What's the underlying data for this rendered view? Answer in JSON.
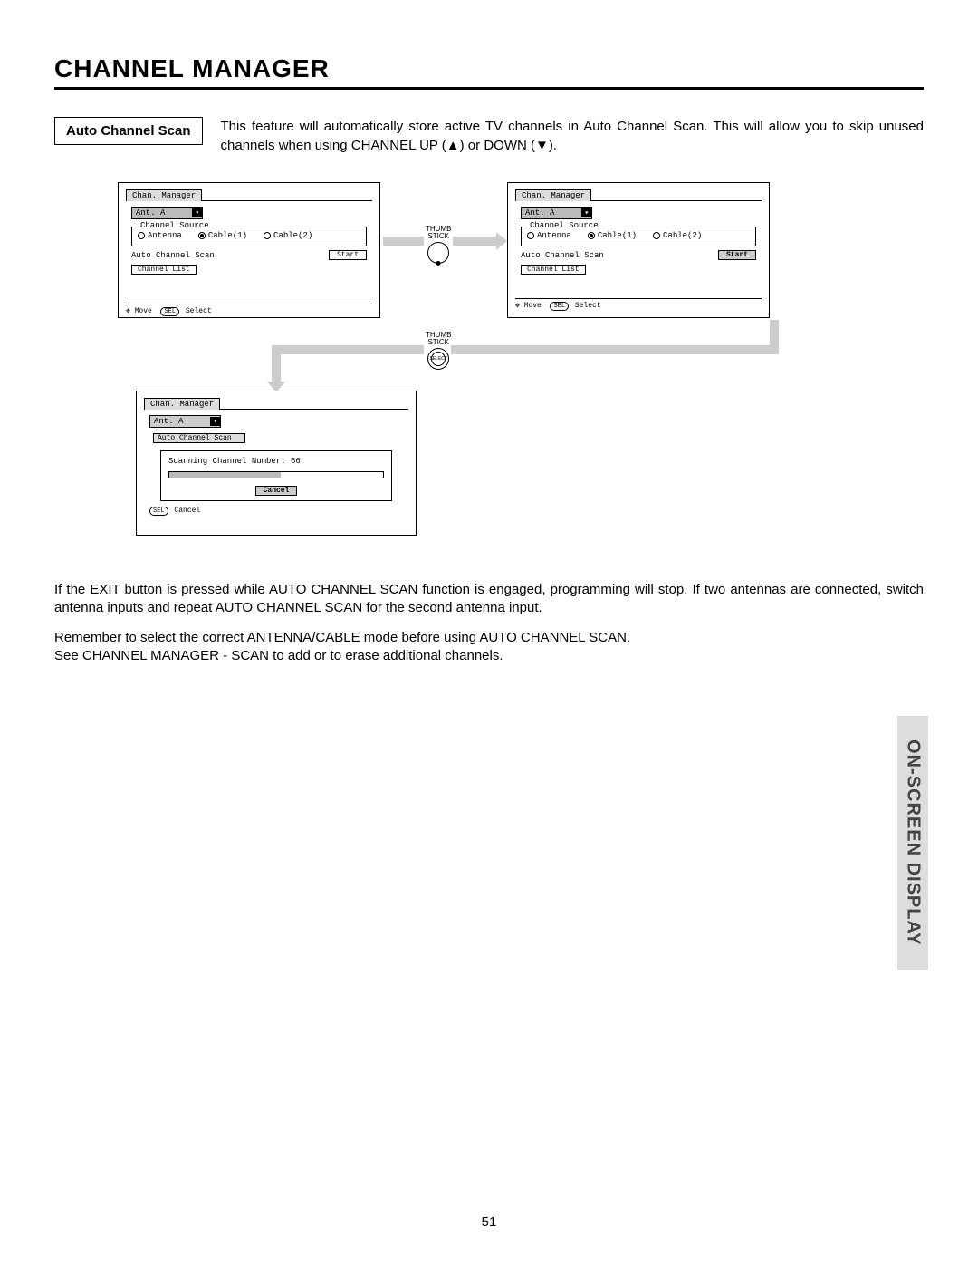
{
  "page": {
    "title": "CHANNEL MANAGER",
    "side_tab": "ON-SCREEN DISPLAY",
    "page_number": "51"
  },
  "intro": {
    "label": "Auto Channel Scan",
    "text": "This feature will automatically store active TV channels in Auto Channel Scan.  This will allow you to skip unused channels when using CHANNEL UP (▲) or DOWN (▼)."
  },
  "osd": {
    "tab": "Chan. Manager",
    "ant_label": "Ant. A",
    "source_legend": "Channel Source",
    "radios": {
      "antenna": "Antenna",
      "cable1": "Cable(1)",
      "cable2": "Cable(2)"
    },
    "auto_scan_label": "Auto Channel Scan",
    "start_btn": "Start",
    "channel_list": "Channel List",
    "hint_move": "Move",
    "hint_select": "Select",
    "hint_sel_pill": "SEL"
  },
  "osd3": {
    "tab": "Chan. Manager",
    "ant_label": "Ant. A",
    "sub_tab": "Auto Channel Scan",
    "scanning_text": "Scanning Channel Number: 66",
    "cancel_btn": "Cancel",
    "hint": "Cancel",
    "hint_pill": "SEL"
  },
  "thumb": {
    "label": "THUMB\nSTICK",
    "select": "SELECT"
  },
  "body": {
    "p1": "If the EXIT button is pressed while AUTO CHANNEL SCAN function is engaged, programming will stop.  If two antennas are connected, switch antenna inputs and repeat AUTO CHANNEL SCAN for the second antenna input.",
    "p2": "Remember to select the correct ANTENNA/CABLE mode before using AUTO CHANNEL SCAN.",
    "p3": "See CHANNEL MANAGER - SCAN to add or to erase additional channels."
  }
}
